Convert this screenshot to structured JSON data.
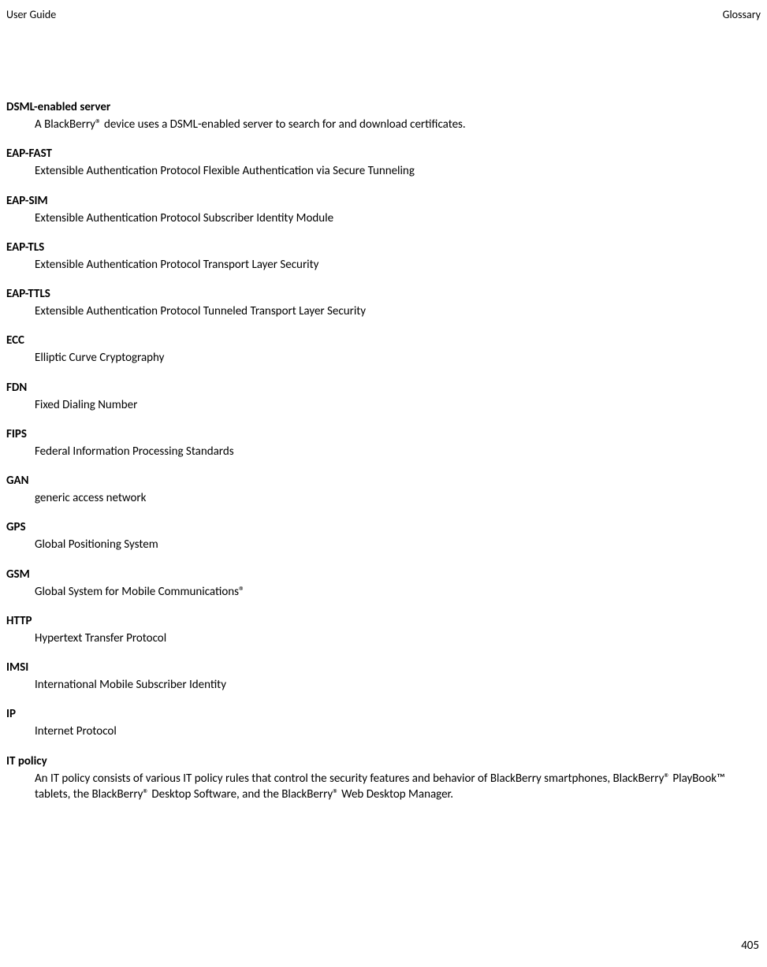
{
  "header": {
    "left": "User Guide",
    "right": "Glossary"
  },
  "entries": [
    {
      "term": "DSML-enabled server",
      "def": "A BlackBerry® device uses a DSML-enabled server to search for and download certificates."
    },
    {
      "term": "EAP-FAST",
      "def": "Extensible Authentication Protocol Flexible Authentication via Secure Tunneling"
    },
    {
      "term": "EAP-SIM",
      "def": "Extensible Authentication Protocol Subscriber Identity Module"
    },
    {
      "term": "EAP-TLS",
      "def": "Extensible Authentication Protocol Transport Layer Security"
    },
    {
      "term": "EAP-TTLS",
      "def": "Extensible Authentication Protocol Tunneled Transport Layer Security"
    },
    {
      "term": "ECC",
      "def": "Elliptic Curve Cryptography"
    },
    {
      "term": "FDN",
      "def": "Fixed Dialing Number"
    },
    {
      "term": "FIPS",
      "def": "Federal Information Processing Standards"
    },
    {
      "term": "GAN",
      "def": "generic access network"
    },
    {
      "term": "GPS",
      "def": "Global Positioning System"
    },
    {
      "term": "GSM",
      "def": "Global System for Mobile Communications®"
    },
    {
      "term": "HTTP",
      "def": "Hypertext Transfer Protocol"
    },
    {
      "term": "IMSI",
      "def": "International Mobile Subscriber Identity"
    },
    {
      "term": "IP",
      "def": "Internet Protocol"
    },
    {
      "term": "IT policy",
      "def": "An IT policy consists of various IT policy rules that control the security features and behavior of BlackBerry smartphones, BlackBerry® PlayBook™ tablets, the BlackBerry® Desktop Software, and the BlackBerry® Web Desktop Manager."
    }
  ],
  "page_number": "405"
}
